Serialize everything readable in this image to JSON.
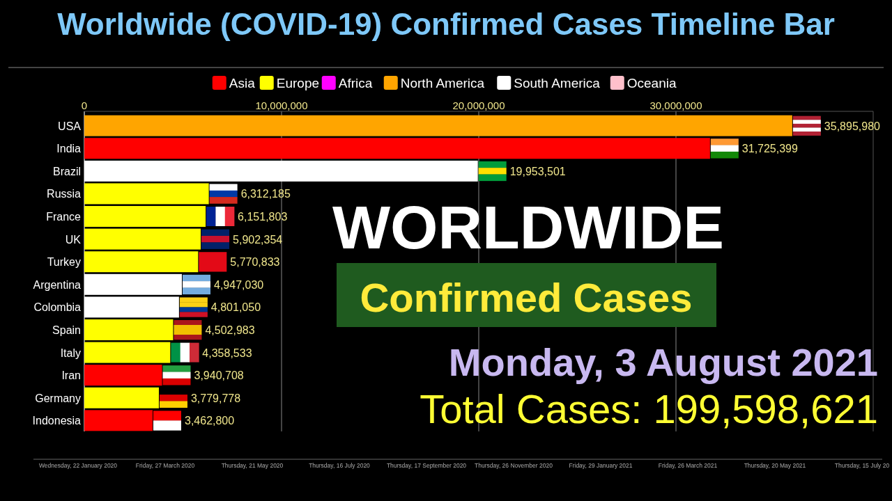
{
  "chart_data": {
    "type": "bar",
    "orientation": "horizontal",
    "title": "Worldwide (COVID-19) Confirmed Cases Timeline Bar",
    "categories": [
      "USA",
      "India",
      "Brazil",
      "Russia",
      "France",
      "UK",
      "Turkey",
      "Argentina",
      "Colombia",
      "Spain",
      "Italy",
      "Iran",
      "Germany",
      "Indonesia"
    ],
    "series": [
      {
        "name": "Asia",
        "color": "#ff0000",
        "values": [
          null,
          31725399,
          null,
          null,
          null,
          null,
          null,
          null,
          null,
          null,
          null,
          3940708,
          null,
          3462800
        ],
        "value_labels": [
          null,
          "31,725,399",
          null,
          null,
          null,
          null,
          null,
          null,
          null,
          null,
          null,
          "3,940,708",
          null,
          "3,462,800"
        ]
      },
      {
        "name": "Europe",
        "color": "#ffff00",
        "values": [
          null,
          null,
          null,
          6312185,
          6151803,
          5902354,
          5770833,
          null,
          null,
          4502983,
          4358533,
          null,
          3779778,
          null
        ],
        "value_labels": [
          null,
          null,
          null,
          "6,312,185",
          "6,151,803",
          "5,902,354",
          "5,770,833",
          null,
          null,
          "4,502,983",
          "4,358,533",
          null,
          "3,779,778",
          null
        ]
      },
      {
        "name": "Africa",
        "color": "#ff00ff",
        "values": [
          null,
          null,
          null,
          null,
          null,
          null,
          null,
          null,
          null,
          null,
          null,
          null,
          null,
          null
        ]
      },
      {
        "name": "North America",
        "color": "#ffa500",
        "values": [
          35895980,
          null,
          null,
          null,
          null,
          null,
          null,
          null,
          null,
          null,
          null,
          null,
          null,
          null
        ],
        "value_labels": [
          "35,895,980",
          null,
          null,
          null,
          null,
          null,
          null,
          null,
          null,
          null,
          null,
          null,
          null,
          null
        ]
      },
      {
        "name": "South America",
        "color": "#ffffff",
        "values": [
          null,
          null,
          19953501,
          null,
          null,
          null,
          null,
          4947030,
          4801050,
          null,
          null,
          null,
          null,
          null
        ],
        "value_labels": [
          null,
          null,
          "19,953,501",
          null,
          null,
          null,
          null,
          "4,947,030",
          "4,801,050",
          null,
          null,
          null,
          null,
          null
        ]
      },
      {
        "name": "Oceania",
        "color": "#ffc0cb",
        "values": [
          null,
          null,
          null,
          null,
          null,
          null,
          null,
          null,
          null,
          null,
          null,
          null,
          null,
          null
        ]
      }
    ],
    "xlim": [
      0,
      40000000
    ],
    "xticks": [
      {
        "value": 0,
        "label": "0"
      },
      {
        "value": 10000000,
        "label": "10,000,000"
      },
      {
        "value": 20000000,
        "label": "20,000,000"
      },
      {
        "value": 30000000,
        "label": "30,000,000"
      }
    ],
    "grid": "x",
    "legend": "top",
    "annotations": [
      "WORLDWIDE",
      "Confirmed Cases",
      "Monday, 3 August 2021",
      "Total Cases: 199,598,621",
      "Wednesday, 22 January 2020",
      "Friday, 27 March 2020",
      "Thursday, 21 May 2020",
      "Thursday, 16 July 2020",
      "Thursday, 17 September 2020",
      "Thursday, 26 November 2020",
      "Friday, 29 January 2021",
      "Friday, 26 March 2021",
      "Thursday, 20 May 2021",
      "Thursday, 15 July 20"
    ]
  }
}
